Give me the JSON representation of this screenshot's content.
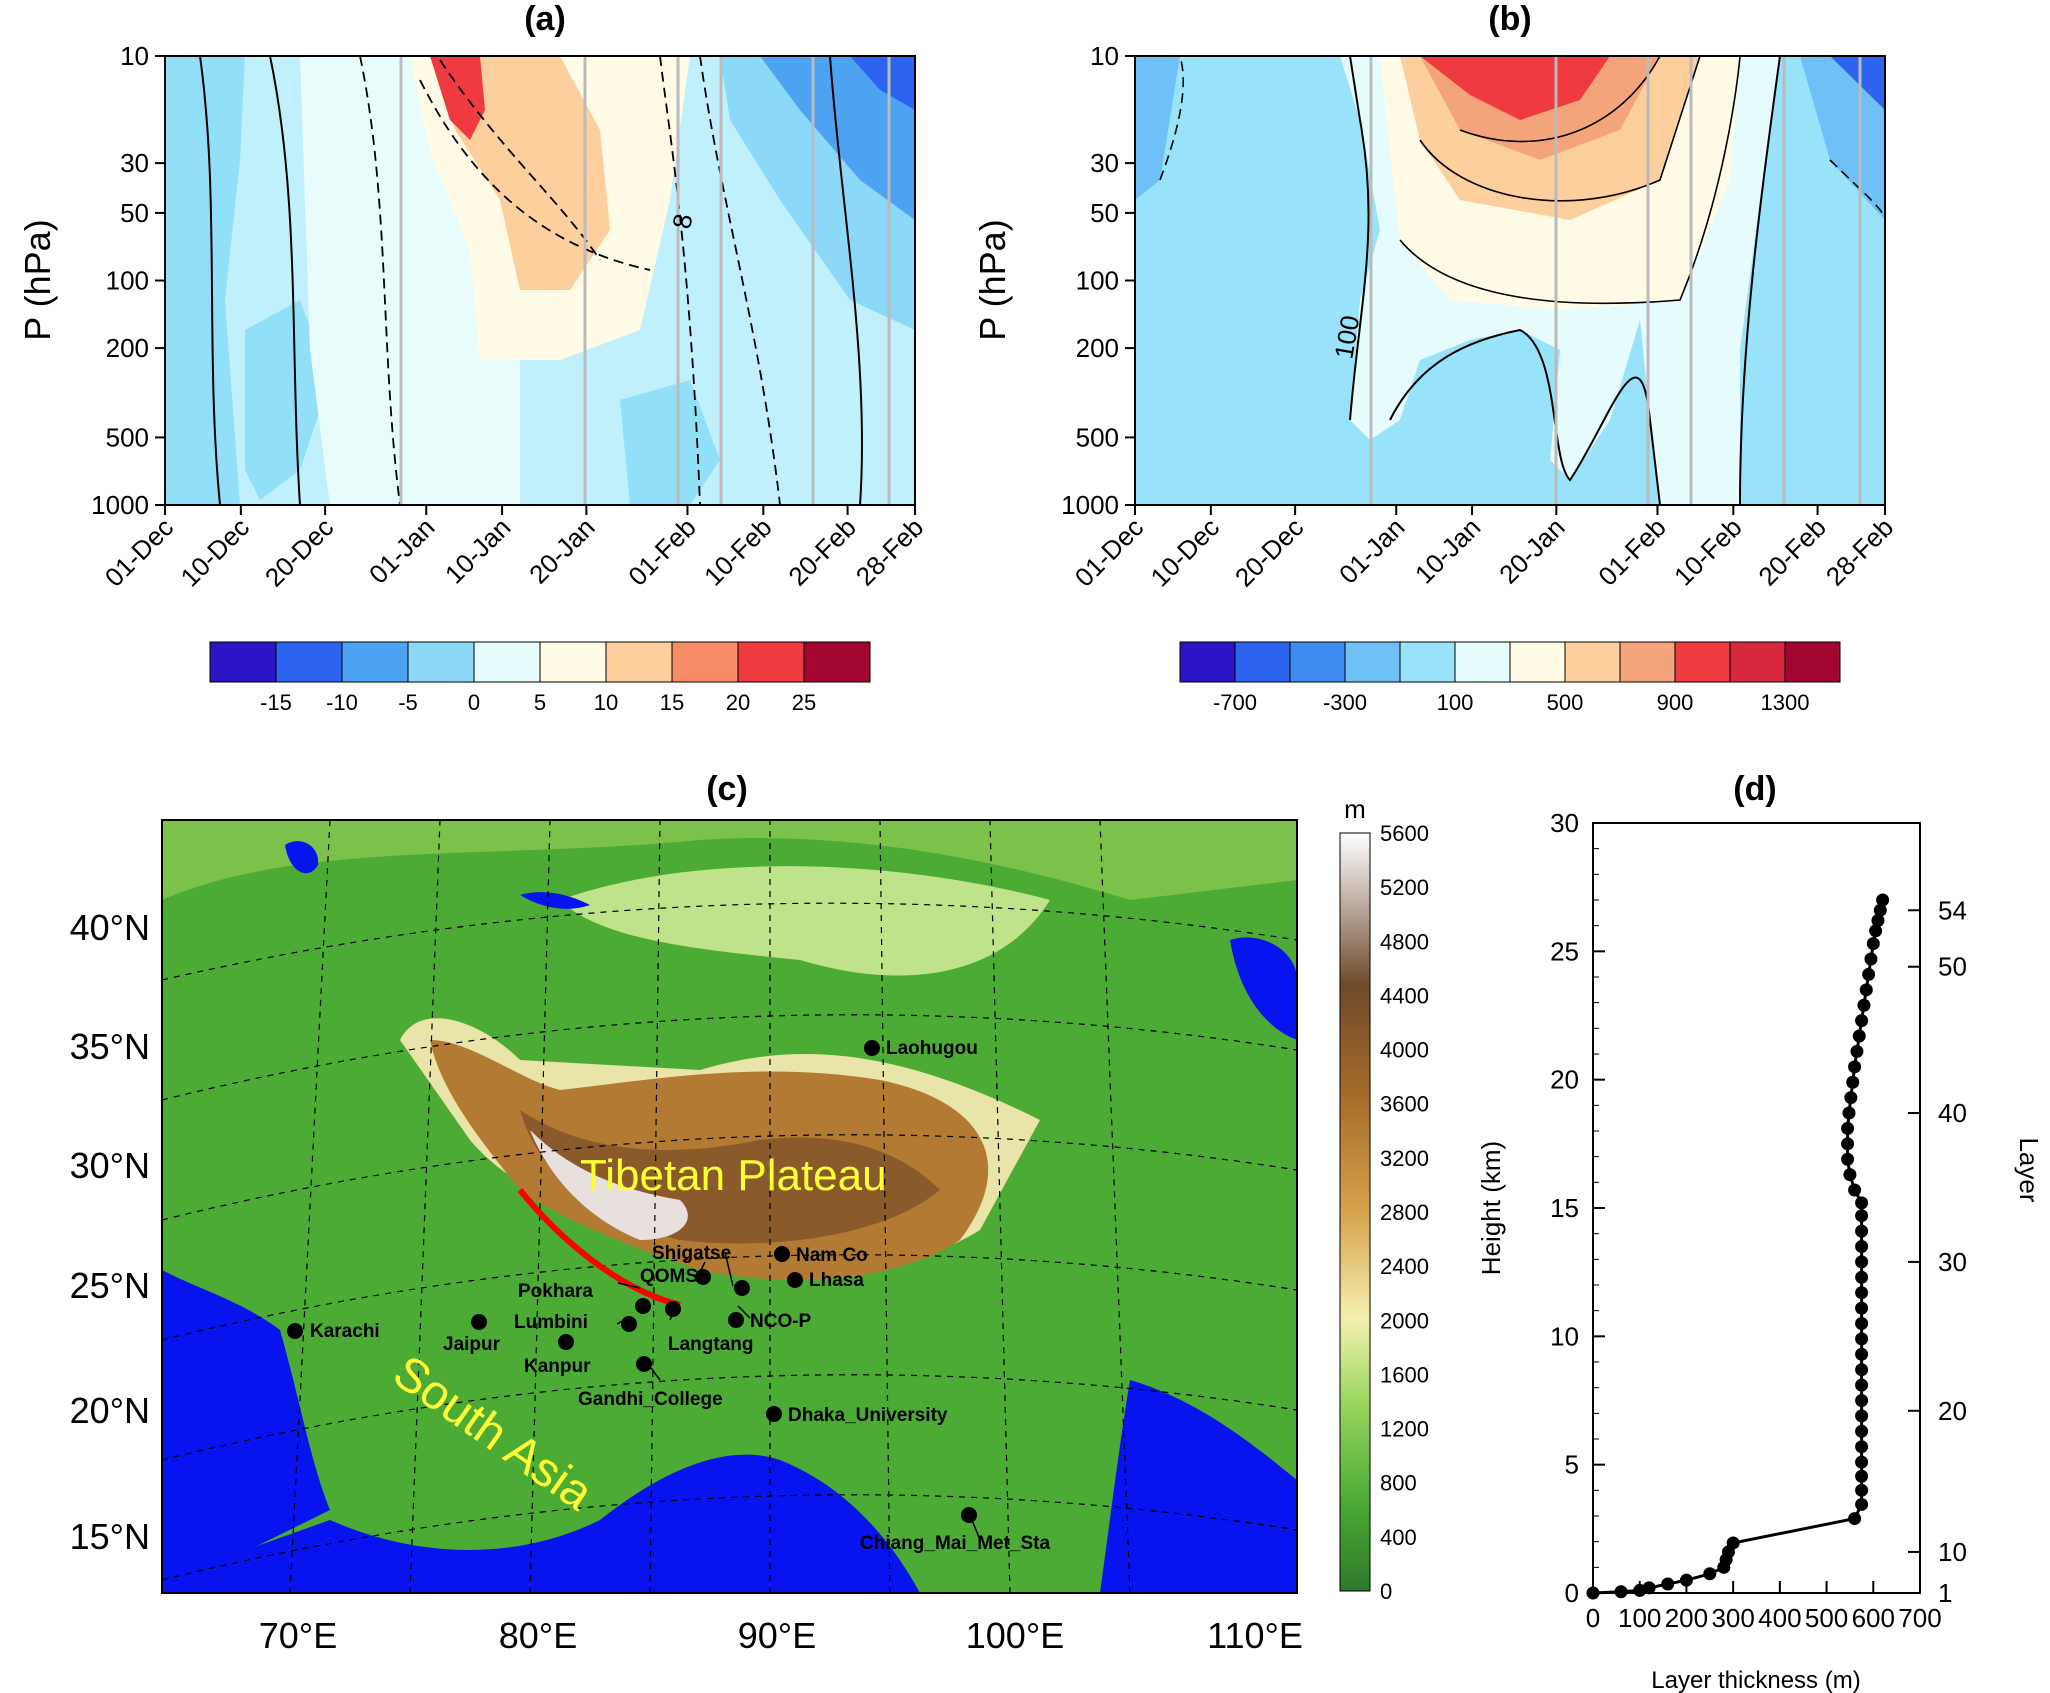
{
  "panel_a": {
    "title": "(a)",
    "ylabel": "P (hPa)",
    "pressure_ticks": [
      "10",
      "30",
      "50",
      "100",
      "200",
      "500",
      "1000"
    ],
    "date_ticks": [
      "01-Dec",
      "10-Dec",
      "20-Dec",
      "01-Jan",
      "10-Jan",
      "20-Jan",
      "01-Feb",
      "10-Feb",
      "20-Feb",
      "28-Feb"
    ],
    "contour_label": "8",
    "colorbar_labels": [
      "-15",
      "-10",
      "-5",
      "0",
      "5",
      "10",
      "15",
      "20",
      "25"
    ],
    "colorbar_colors": [
      "#2b14c8",
      "#2c64f0",
      "#4da2f2",
      "#8bd8f8",
      "#e6fbfb",
      "#fffbe6",
      "#fccf9c",
      "#f88c66",
      "#ee3a40",
      "#a20530"
    ]
  },
  "panel_b": {
    "title": "(b)",
    "ylabel": "P (hPa)",
    "pressure_ticks": [
      "10",
      "30",
      "50",
      "100",
      "200",
      "500",
      "1000"
    ],
    "date_ticks": [
      "01-Dec",
      "10-Dec",
      "20-Dec",
      "01-Jan",
      "10-Jan",
      "20-Jan",
      "01-Feb",
      "10-Feb",
      "20-Feb",
      "28-Feb"
    ],
    "contour_label": "100",
    "colorbar_labels": [
      "-700",
      "-300",
      "100",
      "500",
      "900",
      "1300"
    ],
    "colorbar_colors": [
      "#2b14c8",
      "#2c64f0",
      "#3d8cf0",
      "#6ec0f6",
      "#98e2fa",
      "#e6fbfb",
      "#fffbe6",
      "#fccf9c",
      "#f4a47a",
      "#ee3a40",
      "#d8283e",
      "#a20530"
    ]
  },
  "panel_c": {
    "title": "(c)",
    "unit": "m",
    "lat_labels": [
      "40°N",
      "35°N",
      "30°N",
      "25°N",
      "20°N",
      "15°N"
    ],
    "lon_labels": [
      "70°E",
      "80°E",
      "90°E",
      "100°E",
      "110°E"
    ],
    "region_labels": {
      "plateau": "Tibetan Plateau",
      "south_asia": "South Asia"
    },
    "elevation_ticks": [
      "5600",
      "5200",
      "4800",
      "4400",
      "4000",
      "3600",
      "3200",
      "2800",
      "2400",
      "2000",
      "1600",
      "1200",
      "800",
      "400",
      "0"
    ],
    "stations": [
      "Laohugou",
      "Shigatse",
      "Nam Co",
      "QOMS",
      "Lhasa",
      "Pokhara",
      "NCO-P",
      "Karachi",
      "Jaipur",
      "Lumbini",
      "Langtang",
      "Kanpur",
      "Gandhi_College",
      "Dhaka_University",
      "Chiang_Mai_Met_Sta"
    ]
  },
  "panel_d": {
    "title": "(d)",
    "ylabel": "Height (km)",
    "xlabel": "Layer thickness (m)",
    "right_label": "Layer",
    "height_ticks": [
      "0",
      "5",
      "10",
      "15",
      "20",
      "25",
      "30"
    ],
    "thickness_ticks": [
      "0",
      "100",
      "200",
      "300",
      "400",
      "500",
      "600",
      "700"
    ],
    "layer_ticks": [
      "1",
      "10",
      "20",
      "30",
      "40",
      "50",
      "54"
    ]
  },
  "chart_data": {
    "type": "line",
    "title": "(d)",
    "xlabel": "Layer thickness (m)",
    "ylabel": "Height (km)",
    "xlim": [
      0,
      700
    ],
    "ylim": [
      0,
      30
    ],
    "x": [
      0,
      60,
      100,
      120,
      160,
      200,
      250,
      280,
      285,
      290,
      300,
      560,
      575,
      575,
      575,
      575,
      575,
      575,
      575,
      575,
      575,
      575,
      575,
      575,
      575,
      575,
      575,
      575,
      575,
      575,
      575,
      575,
      575,
      560,
      550,
      545,
      545,
      545,
      548,
      552,
      556,
      560,
      565,
      570,
      575,
      580,
      585,
      590,
      595,
      600,
      605,
      610,
      615,
      620
    ],
    "y": [
      0,
      0.05,
      0.1,
      0.2,
      0.35,
      0.5,
      0.75,
      1.0,
      1.3,
      1.6,
      1.95,
      2.9,
      3.45,
      4.0,
      4.55,
      5.1,
      5.7,
      6.3,
      6.9,
      7.5,
      8.1,
      8.7,
      9.3,
      9.9,
      10.5,
      11.1,
      11.7,
      12.3,
      12.9,
      13.5,
      14.1,
      14.7,
      15.2,
      15.7,
      16.3,
      16.9,
      17.5,
      18.1,
      18.7,
      19.3,
      19.9,
      20.5,
      21.1,
      21.7,
      22.3,
      22.9,
      23.5,
      24.1,
      24.7,
      25.3,
      25.8,
      26.2,
      26.6,
      27.0
    ]
  }
}
